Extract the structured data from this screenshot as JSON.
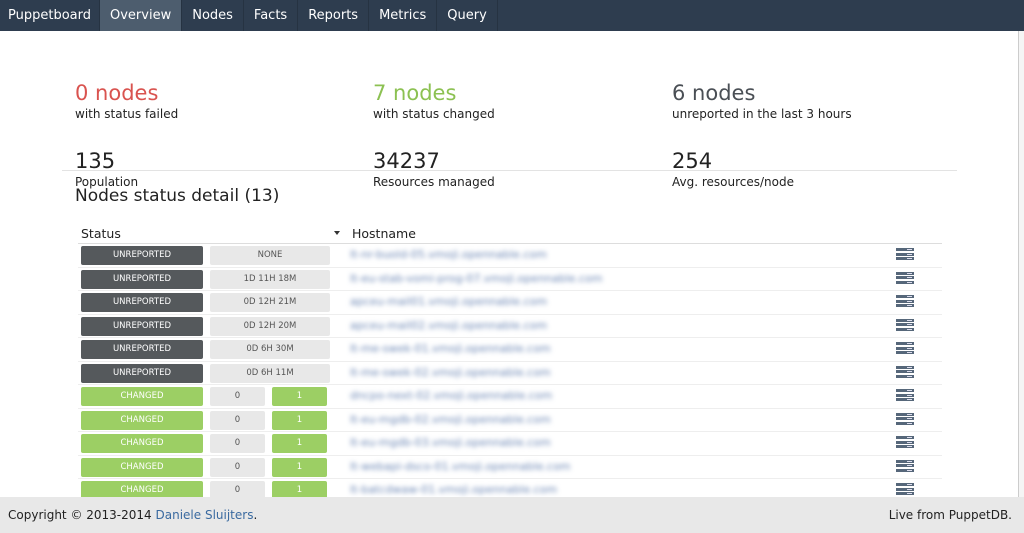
{
  "nav": {
    "brand": "Puppetboard",
    "items": [
      "Overview",
      "Nodes",
      "Facts",
      "Reports",
      "Metrics",
      "Query"
    ],
    "active": "Overview"
  },
  "stats": [
    {
      "value": "0 nodes",
      "label": "with status failed",
      "color": "#d9534f"
    },
    {
      "value": "7 nodes",
      "label": "with status changed",
      "color": "#8cc152"
    },
    {
      "value": "6 nodes",
      "label": "unreported in the last 3 hours",
      "color": "#4a4f55"
    },
    {
      "value": "135",
      "label": "Population",
      "color": "#222"
    },
    {
      "value": "34237",
      "label": "Resources managed",
      "color": "#222"
    },
    {
      "value": "254",
      "label": "Avg. resources/node",
      "color": "#222"
    }
  ],
  "nodes": {
    "title": "Nodes status detail (13)",
    "col_status": "Status",
    "col_hostname": "Hostname",
    "rows": [
      {
        "status": "UNREPORTED",
        "age": "NONE",
        "host": "lt-nr-buold-05.vmoji.opennable.com"
      },
      {
        "status": "UNREPORTED",
        "age": "1D 11H 18M",
        "host": "lt-eu-stab-vomi-prog-07.vmoji.opennable.com"
      },
      {
        "status": "UNREPORTED",
        "age": "0D 12H 21M",
        "host": "apceu-mail01.vmoji.opennable.com"
      },
      {
        "status": "UNREPORTED",
        "age": "0D 12H 20M",
        "host": "apceu-mail02.vmoji.opennable.com"
      },
      {
        "status": "UNREPORTED",
        "age": "0D 6H 30M",
        "host": "lt-me-swek-01.vmoji.opennable.com"
      },
      {
        "status": "UNREPORTED",
        "age": "0D 6H 11M",
        "host": "lt-me-swek-02.vmoji.opennable.com"
      },
      {
        "status": "CHANGED",
        "failed": "0",
        "changed": "1",
        "host": "dncpo-next-02.vmoji.opennable.com"
      },
      {
        "status": "CHANGED",
        "failed": "0",
        "changed": "1",
        "host": "lt-eu-mgdb-02.vmoji.opennable.com"
      },
      {
        "status": "CHANGED",
        "failed": "0",
        "changed": "1",
        "host": "lt-eu-mgdb-03.vmoji.opennable.com"
      },
      {
        "status": "CHANGED",
        "failed": "0",
        "changed": "1",
        "host": "lt-webapi-dsco-01.vmoji.opennable.com"
      },
      {
        "status": "CHANGED",
        "failed": "0",
        "changed": "1",
        "host": "lt-batcdwaw-01.vmoji.opennable.com"
      }
    ]
  },
  "footer": {
    "copyright": "Copyright © 2013-2014 ",
    "author": "Daniele Sluijters",
    "period": ".",
    "right": "Live from PuppetDB."
  }
}
